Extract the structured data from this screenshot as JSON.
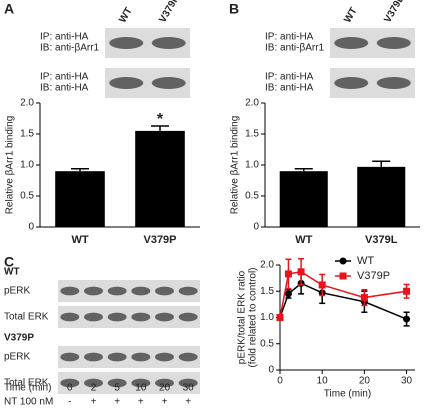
{
  "blots": [
    {
      "panel": "A",
      "columns": [
        "WT",
        "V379P"
      ],
      "rows": [
        [
          "IP: anti-HA",
          "IB: anti-βArr1"
        ],
        [
          "IP: anti-HA",
          "IB: anti-HA"
        ]
      ]
    },
    {
      "panel": "B",
      "columns": [
        "WT",
        "V379L"
      ],
      "rows": [
        [
          "IP: anti-HA",
          "IB: anti-βArr1"
        ],
        [
          "IP: anti-HA",
          "IB: anti-HA"
        ]
      ]
    },
    {
      "panel": "C",
      "groups": [
        "WT",
        "V379P"
      ],
      "rows": [
        "pERK",
        "Total ERK"
      ],
      "time_label": "Time (min)",
      "times": [
        "0",
        "2",
        "5",
        "10",
        "20",
        "30"
      ],
      "treatment_label": "NT 100 nM",
      "treatment": [
        "-",
        "+",
        "+",
        "+",
        "+",
        "+"
      ]
    }
  ],
  "chart_data": [
    {
      "type": "bar",
      "ylabel": "Relative βArr1 binding",
      "categories": [
        "WT",
        "V379P"
      ],
      "values": [
        0.9,
        1.55
      ],
      "errors": [
        0.04,
        0.08
      ],
      "color": "#000000",
      "ylim": [
        0,
        2
      ],
      "yticks": [
        0,
        0.5,
        {
          "value": 1,
          "label": "1.0"
        },
        1.5,
        {
          "value": 2,
          "label": "2.0"
        }
      ],
      "annotations": [
        {
          "text": "*",
          "x": "V379P"
        }
      ]
    },
    {
      "type": "bar",
      "ylabel": "Relative βArr1 binding",
      "categories": [
        "WT",
        "V379L"
      ],
      "values": [
        0.9,
        0.97
      ],
      "errors": [
        0.04,
        0.09
      ],
      "color": "#000000",
      "ylim": [
        0,
        2
      ],
      "yticks": [
        0,
        0.5,
        {
          "value": 1,
          "label": "1.0"
        },
        1.5,
        {
          "value": 2,
          "label": "2.0"
        }
      ]
    },
    {
      "type": "line",
      "xlabel": "Time (min)",
      "ylabel": [
        "pERK/total ERK ratio",
        "(fold related to control)"
      ],
      "x": [
        0,
        2,
        5,
        10,
        20,
        30
      ],
      "series": [
        {
          "name": "WT",
          "color": "#000000",
          "marker": "circle",
          "values": [
            1.0,
            1.45,
            1.65,
            1.47,
            1.3,
            0.97
          ],
          "errors": [
            0.05,
            0.08,
            0.2,
            0.2,
            0.2,
            0.13
          ]
        },
        {
          "name": "V379P",
          "color": "#e8141b",
          "marker": "square",
          "values": [
            1.0,
            1.83,
            1.87,
            1.62,
            1.38,
            1.5
          ],
          "errors": [
            0.05,
            0.28,
            0.25,
            0.2,
            0.15,
            0.13
          ]
        }
      ],
      "xlim": [
        0,
        32
      ],
      "xticks": [
        0,
        10,
        20,
        30
      ],
      "ylim": [
        0,
        2
      ],
      "yticks": [
        0,
        0.5,
        {
          "value": 1,
          "label": "1.0"
        },
        1.5,
        {
          "value": 2,
          "label": "2.0"
        }
      ],
      "legend": "upper right"
    }
  ]
}
